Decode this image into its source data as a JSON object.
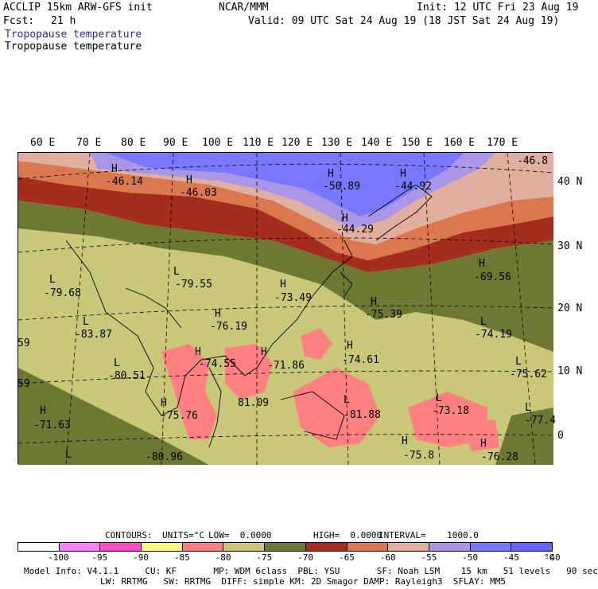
{
  "header": {
    "model": "ACCLIP 15km ARW-GFS init",
    "org": "NCAR/MMM",
    "init": "Init: 12 UTC Fri 23 Aug 19",
    "fcst_label": "Fcst:",
    "fcst_value": "21 h",
    "valid": "Valid: 09 UTC Sat 24 Aug 19 (18 JST Sat 24 Aug 19)",
    "title1": "Tropopause temperature",
    "title2": "Tropopause temperature"
  },
  "map": {
    "lon_labels": [
      "60 E",
      "70 E",
      "80 E",
      "90 E",
      "100 E",
      "110 E",
      "120 E",
      "130 E",
      "140 E",
      "150 E",
      "160 E",
      "170 E"
    ],
    "lat_labels": [
      "40 N",
      "30 N",
      "20 N",
      "10 N",
      "0"
    ],
    "markers": [
      {
        "letter": "H",
        "value": "-46.14"
      },
      {
        "letter": "H",
        "value": "-46.03"
      },
      {
        "letter": "H",
        "value": "-50.89"
      },
      {
        "letter": "H",
        "value": "-44.92"
      },
      {
        "letter": "",
        "value": "-46.8"
      },
      {
        "letter": "H",
        "value": "-44.29"
      },
      {
        "letter": "L",
        "value": "-79.68"
      },
      {
        "letter": "L",
        "value": "-79.55"
      },
      {
        "letter": "H",
        "value": "-73.49"
      },
      {
        "letter": "H",
        "value": "-69.56"
      },
      {
        "letter": "H",
        "value": "-75.39"
      },
      {
        "letter": "L",
        "value": "-83.87"
      },
      {
        "letter": "H",
        "value": "-76.19"
      },
      {
        "letter": "L",
        "value": "-74.19"
      },
      {
        "letter": "",
        "value": "59"
      },
      {
        "letter": "L",
        "value": "-80.51"
      },
      {
        "letter": "H",
        "value": "-74.55"
      },
      {
        "letter": "H",
        "value": "-71.86"
      },
      {
        "letter": "H",
        "value": "-74.61"
      },
      {
        "letter": "L",
        "value": "-75.62"
      },
      {
        "letter": "",
        "value": "59"
      },
      {
        "letter": "H",
        "value": "-75.76"
      },
      {
        "letter": "",
        "value": "81.09"
      },
      {
        "letter": "L",
        "value": "-81.88"
      },
      {
        "letter": "L",
        "value": "-73.18"
      },
      {
        "letter": "H",
        "value": "-71.63"
      },
      {
        "letter": "L",
        "value": "-77.4"
      },
      {
        "letter": "L",
        "value": "-80.96"
      },
      {
        "letter": "H",
        "value": "-75.8"
      },
      {
        "letter": "H",
        "value": "-76.28"
      }
    ]
  },
  "contours": {
    "label": "CONTOURS:",
    "units": "UNITS=°C",
    "low": "LOW=  0.0000",
    "high": "HIGH=  0.0000",
    "interval": "INTERVAL=    1000.0"
  },
  "colorbar": {
    "colors": [
      "#ffffff",
      "#ff80ff",
      "#ff50c8",
      "#ffff80",
      "#ff8080",
      "#c8c878",
      "#6e7832",
      "#a52d1e",
      "#dc7850",
      "#e1afa0",
      "#aa96e6",
      "#7878ff",
      "#6464ff"
    ],
    "labels": [
      "-100",
      "-95",
      "-90",
      "-85",
      "-80",
      "-75",
      "-70",
      "-65",
      "-60",
      "-55",
      "-50",
      "-45",
      "-40"
    ],
    "unit": "°C"
  },
  "footer": {
    "line1": "Model Info: V4.1.1     CU: KF       MP: WDM 6class  PBL: YSU       SF: Noah LSM    15 km   51 levels   90 sec",
    "line2": "LW: RRTMG   SW: RRTMG  DIFF: simple KM: 2D Smagor DAMP: Rayleigh3  SFLAY: MM5"
  }
}
